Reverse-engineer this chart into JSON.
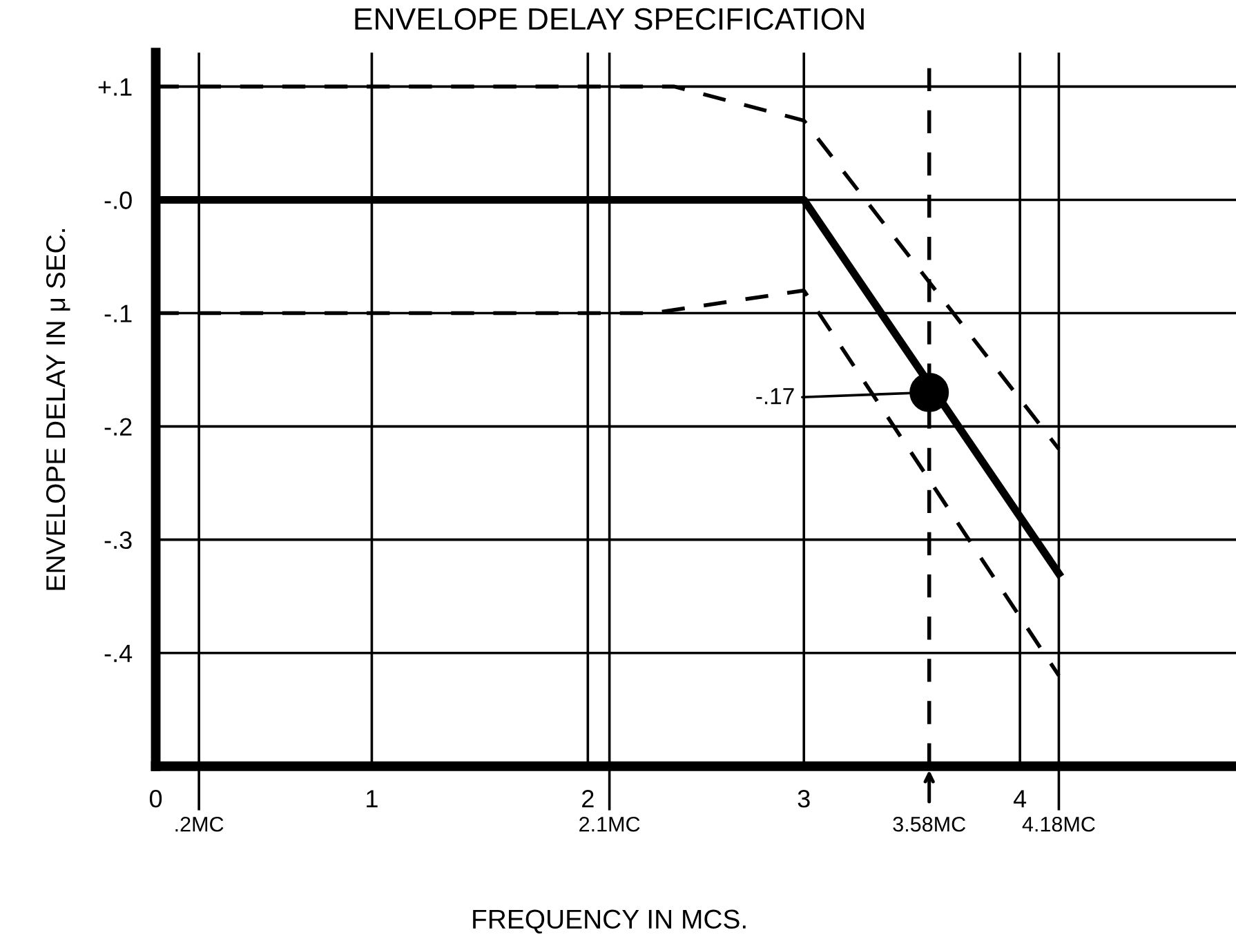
{
  "chart_data": {
    "type": "line",
    "title": "ENVELOPE DELAY SPECIFICATION",
    "xlabel": "FREQUENCY IN MCS.",
    "ylabel": "ENVELOPE DELAY IN μ SEC.",
    "xlim": [
      0,
      5
    ],
    "xticks": [
      0,
      1,
      2,
      3,
      4
    ],
    "ylim": [
      -0.5,
      0.13
    ],
    "yticks": [
      {
        "value": 0.1,
        "label": "+.1"
      },
      {
        "value": 0,
        "label": "-.0"
      },
      {
        "value": -0.1,
        "label": "-.1"
      },
      {
        "value": -0.2,
        "label": "-.2"
      },
      {
        "value": -0.3,
        "label": "-.3"
      },
      {
        "value": -0.4,
        "label": "-.4"
      }
    ],
    "grid": true,
    "legend": false,
    "series": [
      {
        "color": "#000000",
        "line_style": "dashed",
        "x": [
          0,
          2.4,
          3,
          4.18
        ],
        "values": [
          0.1,
          0.1,
          0.07,
          -0.22
        ]
      },
      {
        "color": "#000000",
        "line_style": "solid",
        "x": [
          0,
          3,
          4.18
        ],
        "values": [
          0,
          0,
          -0.33
        ]
      },
      {
        "color": "#000000",
        "line_style": "dashed",
        "x": [
          0,
          2.3,
          3,
          4.18
        ],
        "values": [
          -0.1,
          -0.1,
          -0.08,
          -0.42
        ]
      },
      {
        "type": "scatter",
        "marker": "circle",
        "color": "#000000",
        "x": [
          3.58
        ],
        "values": [
          -0.17
        ]
      }
    ],
    "ref_lines": [
      {
        "axis": "x",
        "value": 0.2,
        "label": ".2MC",
        "color": "#000000",
        "line_style": "solid"
      },
      {
        "axis": "x",
        "value": 2.1,
        "label": "2.1MC",
        "color": "#000000",
        "line_style": "solid"
      },
      {
        "axis": "x",
        "value": 3.58,
        "label": "3.58MC",
        "color": "#000000",
        "line_style": "dashed"
      },
      {
        "axis": "x",
        "value": 4.18,
        "label": "4.18MC",
        "color": "#000000",
        "line_style": "solid"
      }
    ],
    "annotations": [
      {
        "text": "-.17",
        "x": 3.58,
        "y": -0.17
      }
    ]
  }
}
